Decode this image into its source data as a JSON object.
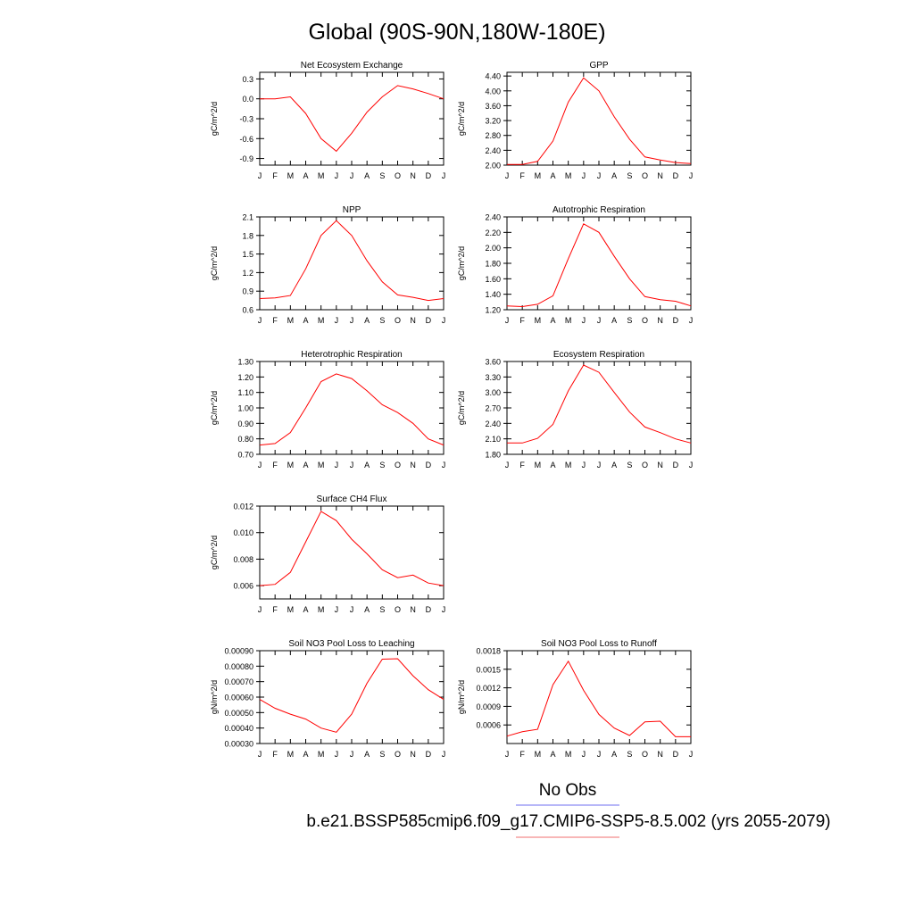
{
  "title": "Global (90S-90N,180W-180E)",
  "legend": {
    "no_obs_label": "No Obs",
    "no_obs_color": "#6f6ff0",
    "case_label": "b.e21.BSSP585cmip6.f09_g17.CMIP6-SSP5-8.5.002 (yrs 2055-2079)",
    "case_color": "#f06f6f"
  },
  "line_color": "#ff0000",
  "month_labels": [
    "J",
    "F",
    "M",
    "A",
    "M",
    "J",
    "J",
    "A",
    "S",
    "O",
    "N",
    "D",
    "J"
  ],
  "chart_data": [
    {
      "type": "line",
      "title": "Net Ecosystem Exchange",
      "ylabel": "gC/m^2/d",
      "ylim": [
        -1.0,
        0.4
      ],
      "yticks": [
        0.3,
        0.0,
        -0.3,
        -0.6,
        -0.9
      ],
      "ytick_labels": [
        "0.3",
        "0.0",
        "-0.3",
        "-0.6",
        "-0.9"
      ],
      "x": [
        "J",
        "F",
        "M",
        "A",
        "M",
        "J",
        "J",
        "A",
        "S",
        "O",
        "N",
        "D",
        "J"
      ],
      "values": [
        0.0,
        0.0,
        0.03,
        -0.22,
        -0.6,
        -0.79,
        -0.52,
        -0.2,
        0.03,
        0.2,
        0.15,
        0.08,
        0.0
      ]
    },
    {
      "type": "line",
      "title": "GPP",
      "ylabel": "gC/m^2/d",
      "ylim": [
        2.0,
        4.5
      ],
      "yticks": [
        4.4,
        4.0,
        3.6,
        3.2,
        2.8,
        2.4,
        2.0
      ],
      "ytick_labels": [
        "4.40",
        "4.00",
        "3.60",
        "3.20",
        "2.80",
        "2.40",
        "2.00"
      ],
      "x": [
        "J",
        "F",
        "M",
        "A",
        "M",
        "J",
        "J",
        "A",
        "S",
        "O",
        "N",
        "D",
        "J"
      ],
      "values": [
        2.02,
        2.02,
        2.1,
        2.65,
        3.7,
        4.35,
        4.0,
        3.3,
        2.7,
        2.22,
        2.14,
        2.07,
        2.04
      ]
    },
    {
      "type": "line",
      "title": "NPP",
      "ylabel": "gC/m^2/d",
      "ylim": [
        0.6,
        2.1
      ],
      "yticks": [
        2.1,
        1.8,
        1.5,
        1.2,
        0.9,
        0.6
      ],
      "ytick_labels": [
        "2.1",
        "1.8",
        "1.5",
        "1.2",
        "0.9",
        "0.6"
      ],
      "x": [
        "J",
        "F",
        "M",
        "A",
        "M",
        "J",
        "J",
        "A",
        "S",
        "O",
        "N",
        "D",
        "J"
      ],
      "values": [
        0.78,
        0.79,
        0.83,
        1.26,
        1.8,
        2.04,
        1.8,
        1.39,
        1.05,
        0.84,
        0.8,
        0.75,
        0.78
      ]
    },
    {
      "type": "line",
      "title": "Autotrophic Respiration",
      "ylabel": "gC/m^2/d",
      "ylim": [
        1.2,
        2.4
      ],
      "yticks": [
        2.4,
        2.2,
        2.0,
        1.8,
        1.6,
        1.4,
        1.2
      ],
      "ytick_labels": [
        "2.40",
        "2.20",
        "2.00",
        "1.80",
        "1.60",
        "1.40",
        "1.20"
      ],
      "x": [
        "J",
        "F",
        "M",
        "A",
        "M",
        "J",
        "J",
        "A",
        "S",
        "O",
        "N",
        "D",
        "J"
      ],
      "values": [
        1.25,
        1.24,
        1.27,
        1.38,
        1.86,
        2.31,
        2.2,
        1.89,
        1.6,
        1.37,
        1.33,
        1.31,
        1.25
      ]
    },
    {
      "type": "line",
      "title": "Heterotrophic Respiration",
      "ylabel": "gC/m^2/d",
      "ylim": [
        0.7,
        1.3
      ],
      "yticks": [
        1.3,
        1.2,
        1.1,
        1.0,
        0.9,
        0.8,
        0.7
      ],
      "ytick_labels": [
        "1.30",
        "1.20",
        "1.10",
        "1.00",
        "0.90",
        "0.80",
        "0.70"
      ],
      "x": [
        "J",
        "F",
        "M",
        "A",
        "M",
        "J",
        "J",
        "A",
        "S",
        "O",
        "N",
        "D",
        "J"
      ],
      "values": [
        0.76,
        0.77,
        0.84,
        1.0,
        1.17,
        1.22,
        1.19,
        1.11,
        1.02,
        0.97,
        0.9,
        0.8,
        0.76
      ]
    },
    {
      "type": "line",
      "title": "Ecosystem Respiration",
      "ylabel": "gC/m^2/d",
      "ylim": [
        1.8,
        3.6
      ],
      "yticks": [
        3.6,
        3.3,
        3.0,
        2.7,
        2.4,
        2.1,
        1.8
      ],
      "ytick_labels": [
        "3.60",
        "3.30",
        "3.00",
        "2.70",
        "2.40",
        "2.10",
        "1.80"
      ],
      "x": [
        "J",
        "F",
        "M",
        "A",
        "M",
        "J",
        "J",
        "A",
        "S",
        "O",
        "N",
        "D",
        "J"
      ],
      "values": [
        2.02,
        2.02,
        2.11,
        2.38,
        3.03,
        3.53,
        3.39,
        3.0,
        2.62,
        2.33,
        2.22,
        2.1,
        2.02
      ]
    },
    {
      "type": "line",
      "title": "Surface CH4 Flux",
      "ylabel": "gC/m^2/d",
      "ylim": [
        0.005,
        0.012
      ],
      "yticks": [
        0.012,
        0.01,
        0.008,
        0.006
      ],
      "ytick_labels": [
        "0.012",
        "0.010",
        "0.008",
        "0.006"
      ],
      "x": [
        "J",
        "F",
        "M",
        "A",
        "M",
        "J",
        "J",
        "A",
        "S",
        "O",
        "N",
        "D",
        "J"
      ],
      "values": [
        0.006,
        0.0061,
        0.007,
        0.0093,
        0.0116,
        0.0109,
        0.0095,
        0.0084,
        0.0072,
        0.0066,
        0.0068,
        0.0062,
        0.006
      ]
    },
    {
      "type": "line",
      "title": "Soil NO3 Pool Loss to Leaching",
      "ylabel": "gN/m^2/d",
      "ylim": [
        0.0003,
        0.0009
      ],
      "yticks": [
        0.0009,
        0.0008,
        0.0007,
        0.0006,
        0.0005,
        0.0004,
        0.0003
      ],
      "ytick_labels": [
        "0.00090",
        "0.00080",
        "0.00070",
        "0.00060",
        "0.00050",
        "0.00040",
        "0.00030"
      ],
      "x": [
        "J",
        "F",
        "M",
        "A",
        "M",
        "J",
        "J",
        "A",
        "S",
        "O",
        "N",
        "D",
        "J"
      ],
      "values": [
        0.000585,
        0.000528,
        0.00049,
        0.000458,
        0.0004,
        0.000373,
        0.00049,
        0.00069,
        0.000845,
        0.000848,
        0.000738,
        0.000648,
        0.000585
      ]
    },
    {
      "type": "line",
      "title": "Soil NO3 Pool Loss to Runoff",
      "ylabel": "gN/m^2/d",
      "ylim": [
        0.0003,
        0.0018
      ],
      "yticks": [
        0.0018,
        0.0015,
        0.0012,
        0.0009,
        0.0006
      ],
      "ytick_labels": [
        "0.0018",
        "0.0015",
        "0.0012",
        "0.0009",
        "0.0006"
      ],
      "x": [
        "J",
        "F",
        "M",
        "A",
        "M",
        "J",
        "J",
        "A",
        "S",
        "O",
        "N",
        "D",
        "J"
      ],
      "values": [
        0.00042,
        0.00049,
        0.00053,
        0.00125,
        0.00163,
        0.00116,
        0.00077,
        0.00055,
        0.00043,
        0.00065,
        0.00066,
        0.00041,
        0.00041
      ]
    }
  ]
}
